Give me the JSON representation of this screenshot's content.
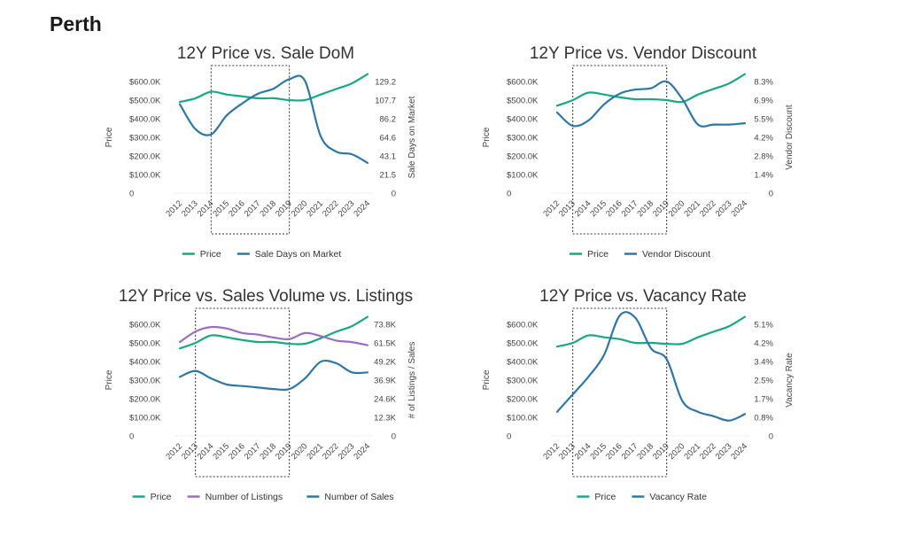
{
  "page": {
    "title": "Perth"
  },
  "colors": {
    "price": "#1aa784",
    "second": "#2d77a8",
    "listings": "#9a6ec0"
  },
  "chart_data": [
    {
      "type": "line",
      "title": "12Y Price vs. Sale DoM",
      "x": [
        "2012",
        "2013",
        "2014",
        "2015",
        "2016",
        "2017",
        "2018",
        "2019",
        "2020",
        "2021",
        "2022",
        "2023",
        "2024"
      ],
      "highlight_range": [
        "2014",
        "2019"
      ],
      "y_left": {
        "label": "Price",
        "ticks": [
          "0",
          "$100.0K",
          "$200.0K",
          "$300.0K",
          "$400.0K",
          "$500.0K",
          "$600.0K"
        ],
        "range": [
          0,
          600
        ]
      },
      "y_right": {
        "label": "Sale Days on Market",
        "ticks": [
          "0",
          "21.5",
          "43.1",
          "64.6",
          "86.2",
          "107.7",
          "129.2"
        ],
        "range": [
          0,
          129.2
        ]
      },
      "series": [
        {
          "name": "Price",
          "axis": "left",
          "color": "#1aa784",
          "values": [
            490,
            510,
            545,
            530,
            520,
            510,
            510,
            500,
            500,
            530,
            560,
            590,
            640
          ]
        },
        {
          "name": "Sale Days on Market",
          "axis": "right",
          "color": "#2d77a8",
          "values": [
            103,
            74,
            68,
            90,
            104,
            115,
            121,
            132,
            130,
            66,
            48,
            45,
            35
          ]
        }
      ],
      "legend": "bottom"
    },
    {
      "type": "line",
      "title": "12Y Price vs. Vendor Discount",
      "x": [
        "2012",
        "2013",
        "2014",
        "2015",
        "2016",
        "2017",
        "2018",
        "2019",
        "2020",
        "2021",
        "2022",
        "2023",
        "2024"
      ],
      "highlight_range": [
        "2013",
        "2019"
      ],
      "y_left": {
        "label": "Price",
        "ticks": [
          "0",
          "$100.0K",
          "$200.0K",
          "$300.0K",
          "$400.0K",
          "$500.0K",
          "$600.0K"
        ],
        "range": [
          0,
          600
        ]
      },
      "y_right": {
        "label": "Vendor Discount",
        "ticks": [
          "0",
          "1.4%",
          "2.8%",
          "4.2%",
          "5.5%",
          "6.9%",
          "8.3%"
        ],
        "range": [
          0,
          8.3
        ]
      },
      "series": [
        {
          "name": "Price",
          "axis": "left",
          "color": "#1aa784",
          "values": [
            470,
            500,
            540,
            530,
            515,
            505,
            505,
            500,
            490,
            530,
            560,
            590,
            640
          ]
        },
        {
          "name": "Vendor Discount",
          "axis": "right",
          "color": "#2d77a8",
          "values": [
            6.0,
            5.0,
            5.4,
            6.6,
            7.4,
            7.7,
            7.8,
            8.3,
            7.0,
            5.1,
            5.1,
            5.1,
            5.2
          ]
        }
      ],
      "legend": "bottom"
    },
    {
      "type": "line",
      "title": "12Y Price vs. Sales Volume vs. Listings",
      "x": [
        "2012",
        "2013",
        "2014",
        "2015",
        "2016",
        "2017",
        "2018",
        "2019",
        "2020",
        "2021",
        "2022",
        "2023",
        "2024"
      ],
      "highlight_range": [
        "2013",
        "2019"
      ],
      "y_left": {
        "label": "Price",
        "ticks": [
          "0",
          "$100.0K",
          "$200.0K",
          "$300.0K",
          "$400.0K",
          "$500.0K",
          "$600.0K"
        ],
        "range": [
          0,
          600
        ]
      },
      "y_right": {
        "label": "# of Listings / Sales",
        "ticks": [
          "0",
          "12.3K",
          "24.6K",
          "36.9K",
          "49.2K",
          "61.5K",
          "73.8K"
        ],
        "range": [
          0,
          73.8
        ]
      },
      "series": [
        {
          "name": "Price",
          "axis": "left",
          "color": "#1aa784",
          "values": [
            470,
            500,
            540,
            530,
            515,
            505,
            505,
            495,
            495,
            525,
            560,
            590,
            640
          ]
        },
        {
          "name": "Number of Listings",
          "axis": "right",
          "color": "#9a6ec0",
          "values": [
            62,
            69,
            72,
            71,
            68,
            67,
            65,
            64,
            68,
            66,
            63,
            62,
            60
          ]
        },
        {
          "name": "Number of Sales",
          "axis": "right",
          "color": "#2d77a8",
          "values": [
            39,
            43,
            38,
            34,
            33,
            32,
            31,
            31,
            38,
            49,
            48,
            42,
            42
          ]
        }
      ],
      "legend": "bottom"
    },
    {
      "type": "line",
      "title": "12Y Price vs. Vacancy Rate",
      "x": [
        "2012",
        "2013",
        "2014",
        "2015",
        "2016",
        "2017",
        "2018",
        "2019",
        "2020",
        "2021",
        "2022",
        "2023",
        "2024"
      ],
      "highlight_range": [
        "2013",
        "2019"
      ],
      "y_left": {
        "label": "Price",
        "ticks": [
          "0",
          "$100.0K",
          "$200.0K",
          "$300.0K",
          "$400.0K",
          "$500.0K",
          "$600.0K"
        ],
        "range": [
          0,
          600
        ]
      },
      "y_right": {
        "label": "Vacancy Rate",
        "ticks": [
          "0",
          "0.8%",
          "1.7%",
          "2.5%",
          "3.4%",
          "4.2%",
          "5.1%"
        ],
        "range": [
          0,
          5.1
        ]
      },
      "series": [
        {
          "name": "Price",
          "axis": "left",
          "color": "#1aa784",
          "values": [
            480,
            500,
            540,
            530,
            520,
            500,
            500,
            495,
            495,
            530,
            560,
            590,
            640
          ]
        },
        {
          "name": "Vacancy Rate",
          "axis": "right",
          "color": "#2d77a8",
          "values": [
            1.1,
            1.9,
            2.7,
            3.7,
            5.5,
            5.4,
            4.0,
            3.5,
            1.6,
            1.1,
            0.9,
            0.7,
            1.0
          ]
        }
      ],
      "legend": "bottom"
    }
  ]
}
